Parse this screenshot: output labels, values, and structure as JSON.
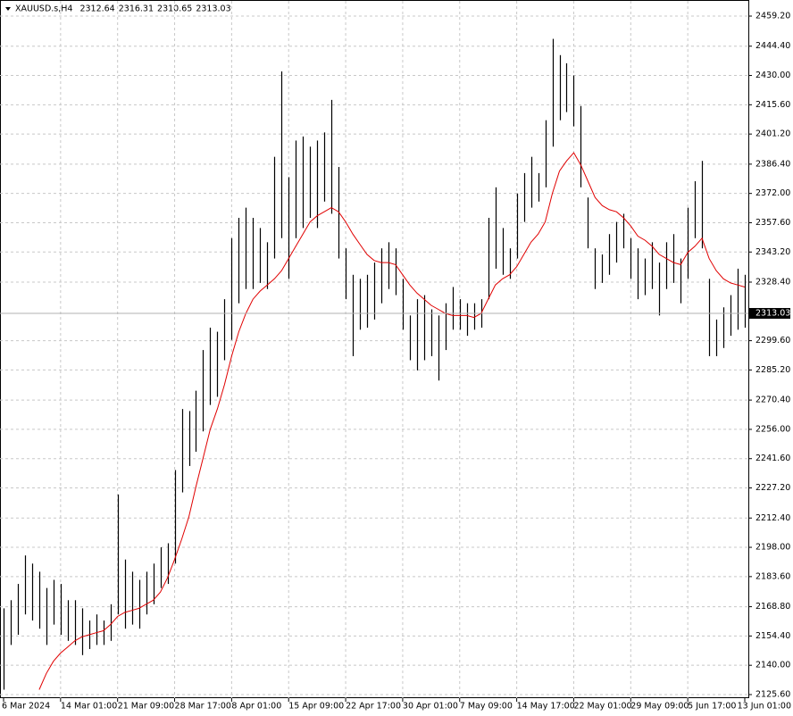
{
  "chart_data": {
    "type": "ohlc",
    "symbol": "XAUUSD.s,H4",
    "header_prices": [
      2312.64,
      2316.31,
      2310.65,
      2313.03
    ],
    "last_price": 2313.03,
    "categories": [
      "6 Mar 2024",
      null,
      null,
      null,
      null,
      null,
      null,
      null,
      "14 Mar 01:00",
      null,
      null,
      null,
      null,
      null,
      null,
      null,
      "21 Mar 09:00",
      null,
      null,
      null,
      null,
      null,
      null,
      null,
      "28 Mar 17:00",
      null,
      null,
      null,
      null,
      null,
      null,
      null,
      "8 Apr 01:00",
      null,
      null,
      null,
      null,
      null,
      null,
      null,
      "15 Apr 09:00",
      null,
      null,
      null,
      null,
      null,
      null,
      null,
      "22 Apr 17:00",
      null,
      null,
      null,
      null,
      null,
      null,
      null,
      "30 Apr 01:00",
      null,
      null,
      null,
      null,
      null,
      null,
      null,
      "7 May 09:00",
      null,
      null,
      null,
      null,
      null,
      null,
      null,
      "14 May 17:00",
      null,
      null,
      null,
      null,
      null,
      null,
      null,
      "22 May 01:00",
      null,
      null,
      null,
      null,
      null,
      null,
      null,
      "29 May 09:00",
      null,
      null,
      null,
      null,
      null,
      null,
      null,
      "5 Jun 17:00",
      null,
      null,
      null,
      null,
      null,
      null,
      null,
      "13 Jun 01:00"
    ],
    "high": [
      2168,
      2172,
      2180,
      2194,
      2190,
      2186,
      2178,
      2182,
      2180,
      2172,
      2172,
      2168,
      2162,
      2165,
      2162,
      2170,
      2224,
      2192,
      2186,
      2182,
      2186,
      2190,
      2198,
      2200,
      2236,
      2266,
      2265,
      2275,
      2295,
      2306,
      2304,
      2320,
      2350,
      2360,
      2365,
      2360,
      2355,
      2348,
      2390,
      2432,
      2380,
      2398,
      2400,
      2395,
      2398,
      2402,
      2418,
      2385,
      2345,
      2332,
      2330,
      2332,
      2338,
      2345,
      2348,
      2345,
      2330,
      2312,
      2320,
      2322,
      2315,
      2312,
      2318,
      2326,
      2320,
      2318,
      2318,
      2320,
      2360,
      2375,
      2355,
      2345,
      2372,
      2382,
      2390,
      2382,
      2408,
      2448,
      2440,
      2436,
      2430,
      2415,
      2370,
      2345,
      2342,
      2352,
      2358,
      2362,
      2350,
      2345,
      2340,
      2348,
      2338,
      2348,
      2352,
      2340,
      2365,
      2378,
      2388,
      2330,
      2310,
      2316,
      2322,
      2335,
      2332
    ],
    "low": [
      2128,
      2150,
      2155,
      2165,
      2162,
      2158,
      2150,
      2160,
      2155,
      2152,
      2150,
      2145,
      2148,
      2150,
      2150,
      2152,
      2165,
      2158,
      2160,
      2158,
      2165,
      2170,
      2178,
      2180,
      2190,
      2225,
      2238,
      2245,
      2255,
      2268,
      2272,
      2290,
      2300,
      2318,
      2325,
      2325,
      2328,
      2325,
      2340,
      2350,
      2330,
      2350,
      2355,
      2360,
      2355,
      2368,
      2362,
      2340,
      2320,
      2292,
      2305,
      2306,
      2310,
      2318,
      2325,
      2322,
      2305,
      2290,
      2285,
      2290,
      2292,
      2280,
      2295,
      2305,
      2305,
      2302,
      2305,
      2306,
      2320,
      2335,
      2332,
      2330,
      2340,
      2358,
      2365,
      2368,
      2375,
      2395,
      2408,
      2412,
      2405,
      2375,
      2345,
      2325,
      2328,
      2332,
      2338,
      2345,
      2330,
      2320,
      2322,
      2325,
      2312,
      2325,
      2328,
      2318,
      2330,
      2350,
      2345,
      2292,
      2292,
      2296,
      2302,
      2305,
      2306
    ],
    "ma_values": [
      null,
      null,
      null,
      null,
      null,
      2128,
      2136,
      2142,
      2146,
      2149,
      2152,
      2154,
      2155,
      2156,
      2157,
      2160,
      2164,
      2166,
      2167,
      2168,
      2170,
      2172,
      2176,
      2183,
      2192,
      2202,
      2213,
      2228,
      2242,
      2256,
      2266,
      2278,
      2292,
      2304,
      2313,
      2320,
      2324,
      2327,
      2330,
      2334,
      2340,
      2346,
      2352,
      2358,
      2361,
      2363,
      2365,
      2363,
      2358,
      2352,
      2347,
      2342,
      2339,
      2338,
      2338,
      2337,
      2332,
      2327,
      2323,
      2320,
      2317,
      2315,
      2313,
      2312,
      2312,
      2312,
      2311,
      2313,
      2320,
      2327,
      2330,
      2332,
      2336,
      2342,
      2348,
      2352,
      2358,
      2372,
      2383,
      2388,
      2392,
      2386,
      2378,
      2370,
      2366,
      2364,
      2363,
      2360,
      2356,
      2351,
      2349,
      2346,
      2342,
      2340,
      2338,
      2337,
      2343,
      2346,
      2350,
      2340,
      2334,
      2330,
      2328,
      2327,
      2326
    ],
    "bar_color": "#000000",
    "ma_color": "#e00000",
    "ylim": [
      2123.84,
      2466.67
    ],
    "yticks": [
      {
        "value": 2459.2,
        "label": "2459.20"
      },
      {
        "value": 2444.4,
        "label": "2444.40"
      },
      {
        "value": 2430,
        "label": "2430.00"
      },
      {
        "value": 2415.6,
        "label": "2415.60"
      },
      {
        "value": 2401.2,
        "label": "2401.20"
      },
      {
        "value": 2386.4,
        "label": "2386.40"
      },
      {
        "value": 2372,
        "label": "2372.00"
      },
      {
        "value": 2357.6,
        "label": "2357.60"
      },
      {
        "value": 2343.2,
        "label": "2343.20"
      },
      {
        "value": 2328.4,
        "label": "2328.40"
      },
      {
        "value": 2299.6,
        "label": "2299.60"
      },
      {
        "value": 2285.2,
        "label": "2285.20"
      },
      {
        "value": 2270.4,
        "label": "2270.40"
      },
      {
        "value": 2256,
        "label": "2256.00"
      },
      {
        "value": 2241.6,
        "label": "2241.60"
      },
      {
        "value": 2227.2,
        "label": "2227.20"
      },
      {
        "value": 2212.4,
        "label": "2212.40"
      },
      {
        "value": 2198,
        "label": "2198.00"
      },
      {
        "value": 2183.6,
        "label": "2183.60"
      },
      {
        "value": 2168.8,
        "label": "2168.80"
      },
      {
        "value": 2154.4,
        "label": "2154.40"
      },
      {
        "value": 2140,
        "label": "2140.00"
      },
      {
        "value": 2125.6,
        "label": "2125.60"
      }
    ],
    "grid": true
  }
}
